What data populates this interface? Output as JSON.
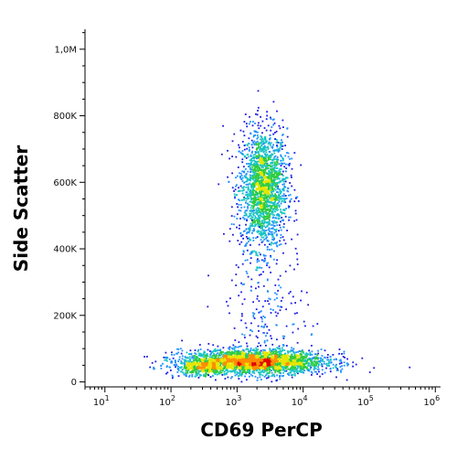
{
  "chart_data": {
    "type": "scatter",
    "style": "density-dot-plot",
    "xlabel": "CD69 PerCP",
    "ylabel": "Side Scatter",
    "x_scale": "log",
    "y_scale": "linear",
    "xlim": [
      5,
      1200000
    ],
    "ylim": [
      -15000,
      1060000
    ],
    "x_ticks": [
      {
        "value": 10,
        "base": "10",
        "exp": "1"
      },
      {
        "value": 100,
        "base": "10",
        "exp": "2"
      },
      {
        "value": 1000,
        "base": "10",
        "exp": "3"
      },
      {
        "value": 10000,
        "base": "10",
        "exp": "4"
      },
      {
        "value": 100000,
        "base": "10",
        "exp": "5"
      },
      {
        "value": 1000000,
        "base": "10",
        "exp": "6"
      }
    ],
    "y_ticks": [
      {
        "value": 0,
        "label": "0"
      },
      {
        "value": 200000,
        "label": "200K"
      },
      {
        "value": 400000,
        "label": "400K"
      },
      {
        "value": 600000,
        "label": "600K"
      },
      {
        "value": 800000,
        "label": "800K"
      },
      {
        "value": 1000000,
        "label": "1,0M"
      }
    ],
    "populations": [
      {
        "x_center": 2500,
        "y_center": 580000,
        "x_spread_decades": 0.18,
        "y_spread": 90000,
        "relative_count": 0.38
      },
      {
        "x_center": 1800,
        "y_center": 60000,
        "x_spread_decades": 0.55,
        "y_spread": 18000,
        "relative_count": 0.52
      },
      {
        "x_center": 280,
        "y_center": 40000,
        "x_spread_decades": 0.2,
        "y_spread": 12000,
        "relative_count": 0.06
      },
      {
        "x_center": 3000,
        "y_center": 200000,
        "x_spread_decades": 0.3,
        "y_spread": 100000,
        "relative_count": 0.04
      }
    ],
    "density_colors": [
      "#1a1ae6",
      "#1e90ff",
      "#18c4c4",
      "#2ecc40",
      "#e6e600",
      "#ff8c00",
      "#e00000"
    ],
    "grid": false,
    "legend": "none"
  }
}
